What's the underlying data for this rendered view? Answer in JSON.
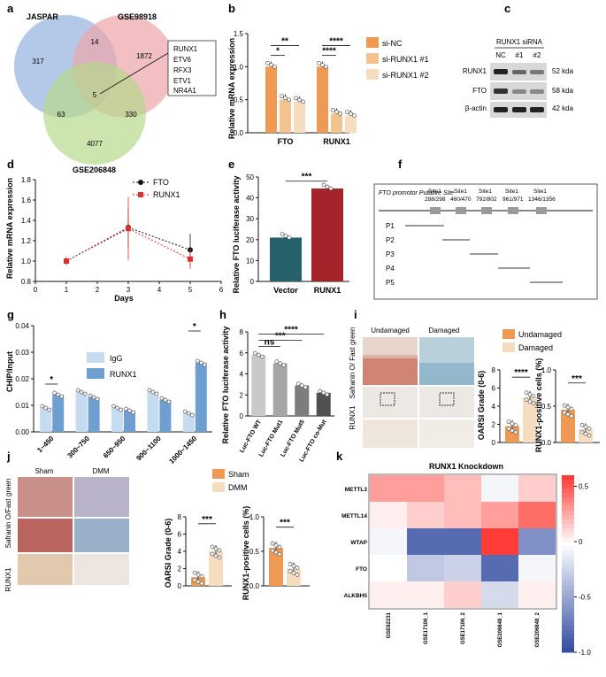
{
  "panel_labels": [
    "a",
    "b",
    "c",
    "d",
    "e",
    "f",
    "g",
    "h",
    "i",
    "j",
    "k"
  ],
  "venn": {
    "sets": [
      "JASPAR",
      "GSE98918",
      "GSE206848"
    ],
    "colors": [
      "#9bb6e0",
      "#eda5a9",
      "#b6d98c"
    ],
    "counts": {
      "jaspar_only": "317",
      "gse98918_only": "1872",
      "gse206848_only": "4077",
      "j_g98": "14",
      "j_g206": "63",
      "g98_g206": "330",
      "all": "5"
    },
    "genes": [
      "RUNX1",
      "ETV6",
      "RFX3",
      "ETV1",
      "NR4A1"
    ]
  },
  "chart_data": [
    {
      "panel": "b",
      "type": "bar",
      "ylabel": "Relative mRNA expression",
      "categories": [
        "FTO",
        "RUNX1"
      ],
      "ylim": [
        0,
        1.5
      ],
      "yticks": [
        "0.0",
        "0.5",
        "1.0",
        "1.5"
      ],
      "series": [
        {
          "name": "si-NC",
          "values": [
            1.0,
            1.0
          ],
          "color": "#ee9a55"
        },
        {
          "name": "si-RUNX1 #1",
          "values": [
            0.5,
            0.29
          ],
          "color": "#f2c28f"
        },
        {
          "name": "si-RUNX1 #2",
          "values": [
            0.47,
            0.26
          ],
          "color": "#f7ddc0"
        }
      ],
      "significance": [
        "*",
        "**",
        "****",
        "****"
      ]
    },
    {
      "panel": "d",
      "type": "line",
      "ylabel": "Relative mRNA expression",
      "xlabel": "Days",
      "xlim": [
        0,
        6
      ],
      "xticks": [
        "0",
        "1",
        "2",
        "3",
        "4",
        "5",
        "6"
      ],
      "ylim": [
        0.8,
        1.8
      ],
      "yticks": [
        "0.8",
        "1.0",
        "1.2",
        "1.4",
        "1.6",
        "1.8"
      ],
      "series": [
        {
          "name": "FTO",
          "x": [
            1,
            3,
            5
          ],
          "y": [
            1.0,
            1.33,
            1.11
          ],
          "err": [
            0.03,
            0.19,
            0.16
          ],
          "color": "#111111"
        },
        {
          "name": "RUNX1",
          "x": [
            1,
            3,
            5
          ],
          "y": [
            1.0,
            1.32,
            1.02
          ],
          "err": [
            0.04,
            0.31,
            0.1
          ],
          "color": "#d9322f"
        }
      ]
    },
    {
      "panel": "e",
      "type": "bar",
      "ylabel": "Relative FTO luciferase activity",
      "categories": [
        "Vector",
        "RUNX1"
      ],
      "ylim": [
        0,
        50
      ],
      "yticks": [
        "0",
        "10",
        "20",
        "30",
        "40",
        "50"
      ],
      "values": [
        21,
        44.5
      ],
      "colors": [
        "#25616a",
        "#a3242a"
      ],
      "significance": [
        "***"
      ]
    },
    {
      "panel": "g",
      "type": "bar",
      "ylabel": "CHIP/Input",
      "categories": [
        "1~450",
        "300~750",
        "650~950",
        "900~1100",
        "1000~1450"
      ],
      "ylim": [
        0,
        0.04
      ],
      "yticks": [
        "0.00",
        "0.01",
        "0.02",
        "0.03",
        "0.04"
      ],
      "series": [
        {
          "name": "IgG",
          "values": [
            0.009,
            0.015,
            0.009,
            0.015,
            0.007
          ],
          "color": "#c5dbf0"
        },
        {
          "name": "RUNX1",
          "values": [
            0.014,
            0.013,
            0.008,
            0.012,
            0.026
          ],
          "color": "#6f9fd0"
        }
      ],
      "significance": [
        "*",
        "*"
      ]
    },
    {
      "panel": "h",
      "type": "bar",
      "ylabel": "Relative FTO luciferase activity",
      "categories": [
        "Luc-FTO WT",
        "Luc-FTO Mut1",
        "Luc-FTO Mut5",
        "Luc-FTO co-Mut"
      ],
      "ylim": [
        0,
        8
      ],
      "yticks": [
        "0",
        "2",
        "4",
        "6",
        "8"
      ],
      "values": [
        5.8,
        5.0,
        2.9,
        2.2
      ],
      "colors": [
        "#c9c9c9",
        "#a6a6a6",
        "#7d7d7d",
        "#505050"
      ],
      "significance": [
        "ns",
        "***",
        "****"
      ]
    },
    {
      "panel": "i-left",
      "type": "bar",
      "ylabel": "OARSI Grade (0-6)",
      "categories": [
        "Undamaged",
        "Damaged"
      ],
      "ylim": [
        0,
        8
      ],
      "yticks": [
        "0",
        "2",
        "4",
        "6",
        "8"
      ],
      "values": [
        1.8,
        5.0
      ],
      "colors": [
        "#ee9a55",
        "#f7ddc0"
      ],
      "significance": [
        "****"
      ]
    },
    {
      "panel": "i-right",
      "type": "bar",
      "ylabel": "RUNX1-positive cells (%)",
      "categories": [
        "Undamaged",
        "Damaged"
      ],
      "ylim": [
        0,
        1.0
      ],
      "yticks": [
        "0.0",
        "0.5",
        "1.0"
      ],
      "values": [
        0.45,
        0.18
      ],
      "colors": [
        "#ee9a55",
        "#f7ddc0"
      ],
      "significance": [
        "***"
      ]
    },
    {
      "panel": "j-left",
      "type": "bar",
      "ylabel": "OARSI Grade (0-6)",
      "categories": [
        "Sham",
        "DMM"
      ],
      "ylim": [
        0,
        8
      ],
      "yticks": [
        "0",
        "2",
        "4",
        "6",
        "8"
      ],
      "values": [
        1.0,
        4.0
      ],
      "colors": [
        "#ee9a55",
        "#f7ddc0"
      ],
      "significance": [
        "***"
      ]
    },
    {
      "panel": "j-right",
      "type": "bar",
      "ylabel": "RUNX1-positive cells (%)",
      "categories": [
        "Sham",
        "DMM"
      ],
      "ylim": [
        0,
        1.0
      ],
      "yticks": [
        "0.0",
        "0.5",
        "1.0"
      ],
      "values": [
        0.55,
        0.25
      ],
      "colors": [
        "#ee9a55",
        "#f7ddc0"
      ],
      "significance": [
        "***"
      ]
    },
    {
      "panel": "k",
      "type": "heatmap",
      "title": "RUNX1 Knockdown",
      "rows": [
        "METTL3",
        "METTL14",
        "WTAP",
        "FTO",
        "ALKBH5"
      ],
      "cols": [
        "GSE82231",
        "GSE17106_1",
        "GSE17106_2",
        "GSE206848_1",
        "GSE206848_2"
      ],
      "values": [
        [
          0.3,
          0.3,
          0.2,
          -0.05,
          0.15
        ],
        [
          0.05,
          0.15,
          0.2,
          0.3,
          0.45
        ],
        [
          -0.05,
          -0.8,
          -0.8,
          0.85,
          -0.6
        ],
        [
          0.0,
          -0.3,
          -0.25,
          -0.8,
          -0.05
        ],
        [
          0.05,
          0.05,
          0.15,
          -0.2,
          0.05
        ]
      ],
      "colorbar_ticks": [
        "0.5",
        "0",
        "-0.5",
        "-1.0"
      ],
      "vmin": -1.0,
      "vmax": 0.6
    }
  ],
  "blot": {
    "header": "RUNX1 siRNA",
    "lanes": [
      "NC",
      "#1",
      "#2"
    ],
    "rows": [
      {
        "name": "RUNX1",
        "size": "52 kda"
      },
      {
        "name": "FTO",
        "size": "58 kda"
      },
      {
        "name": "β-actin",
        "size": "42 kda"
      }
    ]
  },
  "promoter": {
    "title": "FTO promotor Putative Site",
    "sites": [
      {
        "name": "Site1",
        "pos": "288/298"
      },
      {
        "name": "Site1",
        "pos": "460/470"
      },
      {
        "name": "Site1",
        "pos": "792/802"
      },
      {
        "name": "Site1",
        "pos": "961/971"
      },
      {
        "name": "Site1",
        "pos": "1346/1356"
      }
    ],
    "fragments": [
      "P1",
      "P2",
      "P3",
      "P4",
      "P5"
    ]
  },
  "histology_i": {
    "headers": [
      "Undamaged",
      "Damaged"
    ],
    "row_labels": [
      "Safranin O/ Fast green",
      "RUNX1"
    ]
  },
  "histology_j": {
    "headers": [
      "Sham",
      "DMM"
    ],
    "row_labels": [
      "RUNX1",
      "Safranin O/Fast green"
    ]
  }
}
